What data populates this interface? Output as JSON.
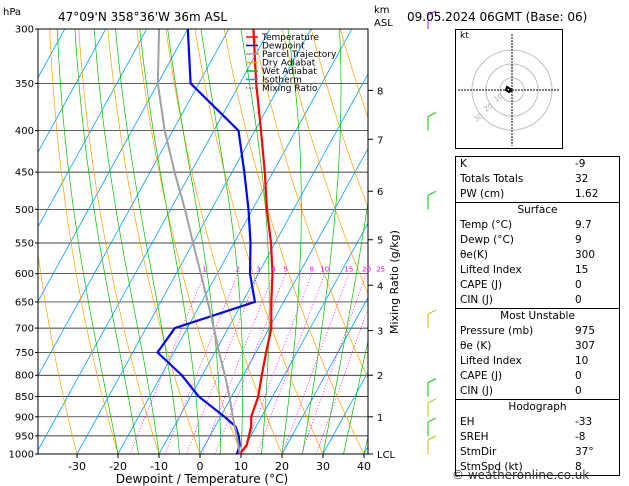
{
  "header": {
    "location": "47°09'N  358°36'W  36m  ASL",
    "date": "09.05.2024  06GMT  (Base: 06)",
    "hpa_label": "hPa",
    "km_label": "km",
    "asl_label": "ASL"
  },
  "footer": {
    "text": "© weatheronline.co.uk"
  },
  "hodograph": {
    "unit_label": "kt",
    "ring_labels": [
      "10",
      "20",
      "30"
    ]
  },
  "stability": {
    "rows": [
      {
        "label": "K",
        "value": "-9"
      },
      {
        "label": "Totals Totals",
        "value": "32"
      },
      {
        "label": "PW (cm)",
        "value": "1.62"
      }
    ]
  },
  "surface": {
    "title": "Surface",
    "rows": [
      {
        "label": "Temp (°C)",
        "value": "9.7"
      },
      {
        "label": "Dewp (°C)",
        "value": "9"
      },
      {
        "label": "θe(K)",
        "value": "300"
      },
      {
        "label": "Lifted Index",
        "value": "15"
      },
      {
        "label": "CAPE (J)",
        "value": "0"
      },
      {
        "label": "CIN (J)",
        "value": "0"
      }
    ]
  },
  "most_unstable": {
    "title": "Most Unstable",
    "rows": [
      {
        "label": "Pressure (mb)",
        "value": "975"
      },
      {
        "label": "θe (K)",
        "value": "307"
      },
      {
        "label": "Lifted Index",
        "value": "10"
      },
      {
        "label": "CAPE (J)",
        "value": "0"
      },
      {
        "label": "CIN (J)",
        "value": "0"
      }
    ]
  },
  "hodograph_table": {
    "title": "Hodograph",
    "rows": [
      {
        "label": "EH",
        "value": "-33"
      },
      {
        "label": "SREH",
        "value": "-8"
      },
      {
        "label": "StmDir",
        "value": "37°"
      },
      {
        "label": "StmSpd (kt)",
        "value": "8"
      }
    ]
  },
  "chart_data": {
    "type": "line",
    "xlabel": "Dewpoint / Temperature (°C)",
    "ylabel": "Mixing Ratio (g/kg)",
    "xlim": [
      -35,
      40
    ],
    "ylim": [
      1000,
      300
    ],
    "x_ticks": [
      "-30",
      "-20",
      "-10",
      "0",
      "10",
      "20",
      "30",
      "40"
    ],
    "pressure_levels": [
      "300",
      "350",
      "400",
      "450",
      "500",
      "550",
      "600",
      "650",
      "700",
      "750",
      "800",
      "850",
      "900",
      "950",
      "1000"
    ],
    "km_ticks": [
      {
        "label": "8",
        "p": 357
      },
      {
        "label": "7",
        "p": 410
      },
      {
        "label": "6",
        "p": 475
      },
      {
        "label": "5",
        "p": 545
      },
      {
        "label": "4",
        "p": 620
      },
      {
        "label": "3",
        "p": 705
      },
      {
        "label": "2",
        "p": 800
      },
      {
        "label": "1",
        "p": 900
      },
      {
        "label": "LCL",
        "p": 1000
      }
    ],
    "mixing_ratio_labels": [
      "1",
      "2",
      "3",
      "4",
      "5",
      "8",
      "10",
      "15",
      "20",
      "25"
    ],
    "legend": {
      "position": "top-left",
      "items": [
        {
          "name": "Temperature",
          "color": "#ff0000"
        },
        {
          "name": "Dewpoint",
          "color": "#0000ff"
        },
        {
          "name": "Parcel Trajectory",
          "color": "#a0a0a0"
        },
        {
          "name": "Dry Adiabat",
          "color": "#ffa000"
        },
        {
          "name": "Wet Adiabat",
          "color": "#00c000"
        },
        {
          "name": "Isotherm",
          "color": "#00a0ff"
        },
        {
          "name": "Mixing Ratio",
          "color": "#ff00ff"
        }
      ]
    },
    "series": [
      {
        "name": "Temperature",
        "color": "#ff0000",
        "points": [
          [
            1000,
            9.7
          ],
          [
            975,
            10.2
          ],
          [
            950,
            9.5
          ],
          [
            925,
            8.8
          ],
          [
            900,
            7.5
          ],
          [
            850,
            6.5
          ],
          [
            800,
            4.5
          ],
          [
            750,
            2.5
          ],
          [
            700,
            0.5
          ],
          [
            650,
            -3
          ],
          [
            600,
            -6.5
          ],
          [
            550,
            -11
          ],
          [
            500,
            -16.5
          ],
          [
            450,
            -22
          ],
          [
            400,
            -28.5
          ],
          [
            350,
            -36
          ],
          [
            300,
            -44
          ]
        ]
      },
      {
        "name": "Dewpoint",
        "color": "#0000ff",
        "points": [
          [
            1000,
            9
          ],
          [
            975,
            8.5
          ],
          [
            950,
            7
          ],
          [
            925,
            5
          ],
          [
            900,
            1
          ],
          [
            850,
            -8
          ],
          [
            800,
            -15
          ],
          [
            750,
            -24
          ],
          [
            700,
            -23
          ],
          [
            650,
            -7
          ],
          [
            600,
            -12
          ],
          [
            550,
            -16
          ],
          [
            500,
            -21
          ],
          [
            450,
            -27
          ],
          [
            400,
            -34
          ],
          [
            350,
            -52
          ],
          [
            300,
            -60
          ]
        ]
      },
      {
        "name": "Parcel Trajectory",
        "color": "#a0a0a0",
        "points": [
          [
            1000,
            9.7
          ],
          [
            975,
            8.2
          ],
          [
            950,
            6.5
          ],
          [
            900,
            3
          ],
          [
            850,
            -0.5
          ],
          [
            800,
            -4.5
          ],
          [
            750,
            -9
          ],
          [
            700,
            -13.5
          ],
          [
            650,
            -18.5
          ],
          [
            600,
            -24
          ],
          [
            550,
            -30
          ],
          [
            500,
            -36.5
          ],
          [
            450,
            -44
          ],
          [
            400,
            -52
          ],
          [
            350,
            -60
          ],
          [
            300,
            -67
          ]
        ]
      }
    ]
  }
}
